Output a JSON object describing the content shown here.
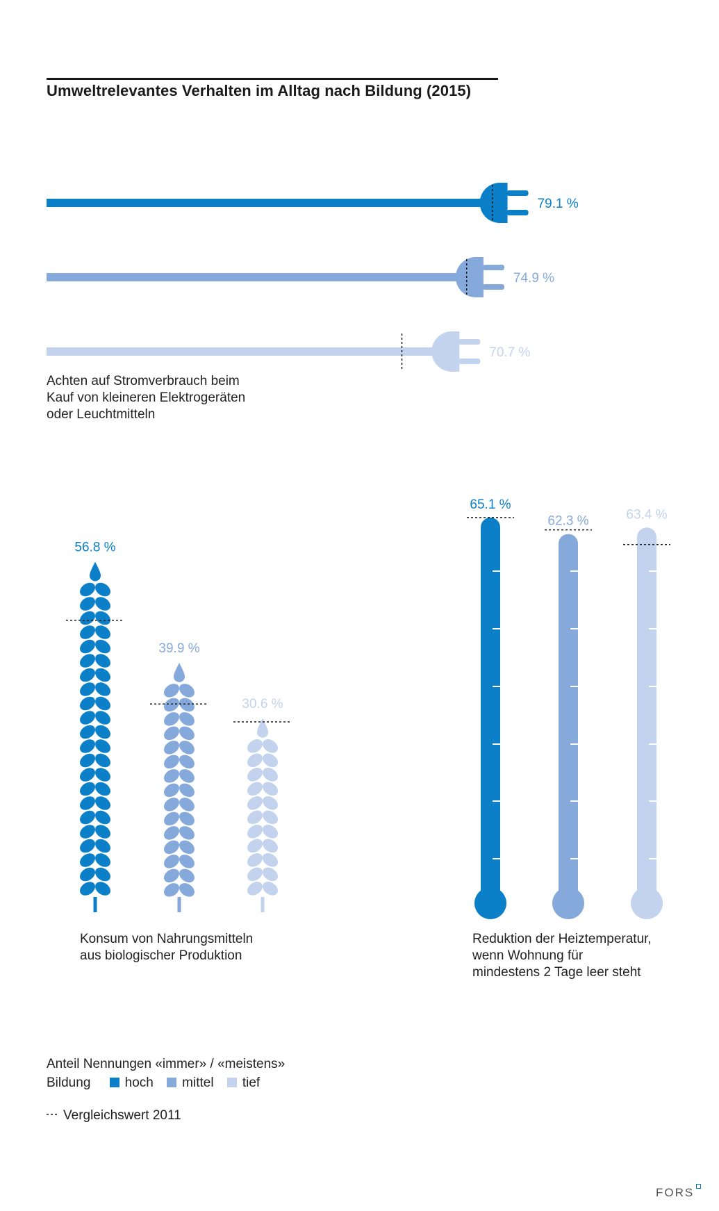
{
  "title": "Umweltrelevantes Verhalten im Alltag nach Bildung (2015)",
  "colors": {
    "hoch": "#0b7fc8",
    "mittel": "#86a9db",
    "tief": "#c3d3ee"
  },
  "chart_data": [
    {
      "type": "bar",
      "pictogram": "plug",
      "caption": "Achten auf Stromverbrauch beim Kauf von kleineren Elektrogeräten oder Leuchtmitteln",
      "caption_lines": [
        "Achten auf Stromverbrauch beim",
        "Kauf von kleineren Elektrogeräten",
        "oder Leuchtmitteln"
      ],
      "categories": [
        "hoch",
        "mittel",
        "tief"
      ],
      "values": [
        79.1,
        74.9,
        70.7
      ],
      "value_labels": [
        "79.1 %",
        "74.9 %",
        "70.7 %"
      ],
      "comparison_2011": [
        77.8,
        73.3,
        62.0
      ]
    },
    {
      "type": "bar",
      "pictogram": "wheat",
      "caption": "Konsum von Nahrungsmitteln aus biologischer Produktion",
      "caption_lines": [
        "Konsum von Nahrungsmitteln",
        "aus biologischer Produktion"
      ],
      "categories": [
        "hoch",
        "mittel",
        "tief"
      ],
      "values": [
        56.8,
        39.9,
        30.6
      ],
      "value_labels": [
        "56.8 %",
        "39.9 %",
        "30.6 %"
      ],
      "comparison_2011": [
        47.0,
        33.0,
        30.0
      ]
    },
    {
      "type": "bar",
      "pictogram": "thermometer",
      "caption": "Reduktion der Heiztemperatur, wenn Wohnung für mindestens 2 Tage leer steht",
      "caption_lines": [
        "Reduktion der Heiztemperatur,",
        "wenn Wohnung für",
        "mindestens 2 Tage leer steht"
      ],
      "categories": [
        "hoch",
        "mittel",
        "tief"
      ],
      "values": [
        65.1,
        62.3,
        63.4
      ],
      "value_labels": [
        "65.1 %",
        "62.3 %",
        "63.4 %"
      ],
      "comparison_2011": [
        65.1,
        63.0,
        60.5
      ]
    }
  ],
  "legend": {
    "heading": "Anteil Nennungen «immer» / «meistens»",
    "bildung_label": "Bildung",
    "items": [
      {
        "key": "hoch",
        "label": "hoch"
      },
      {
        "key": "mittel",
        "label": "mittel"
      },
      {
        "key": "tief",
        "label": "tief"
      }
    ],
    "comparison_label": "Vergleichswert 2011"
  },
  "footer": {
    "brand": "FORS"
  }
}
